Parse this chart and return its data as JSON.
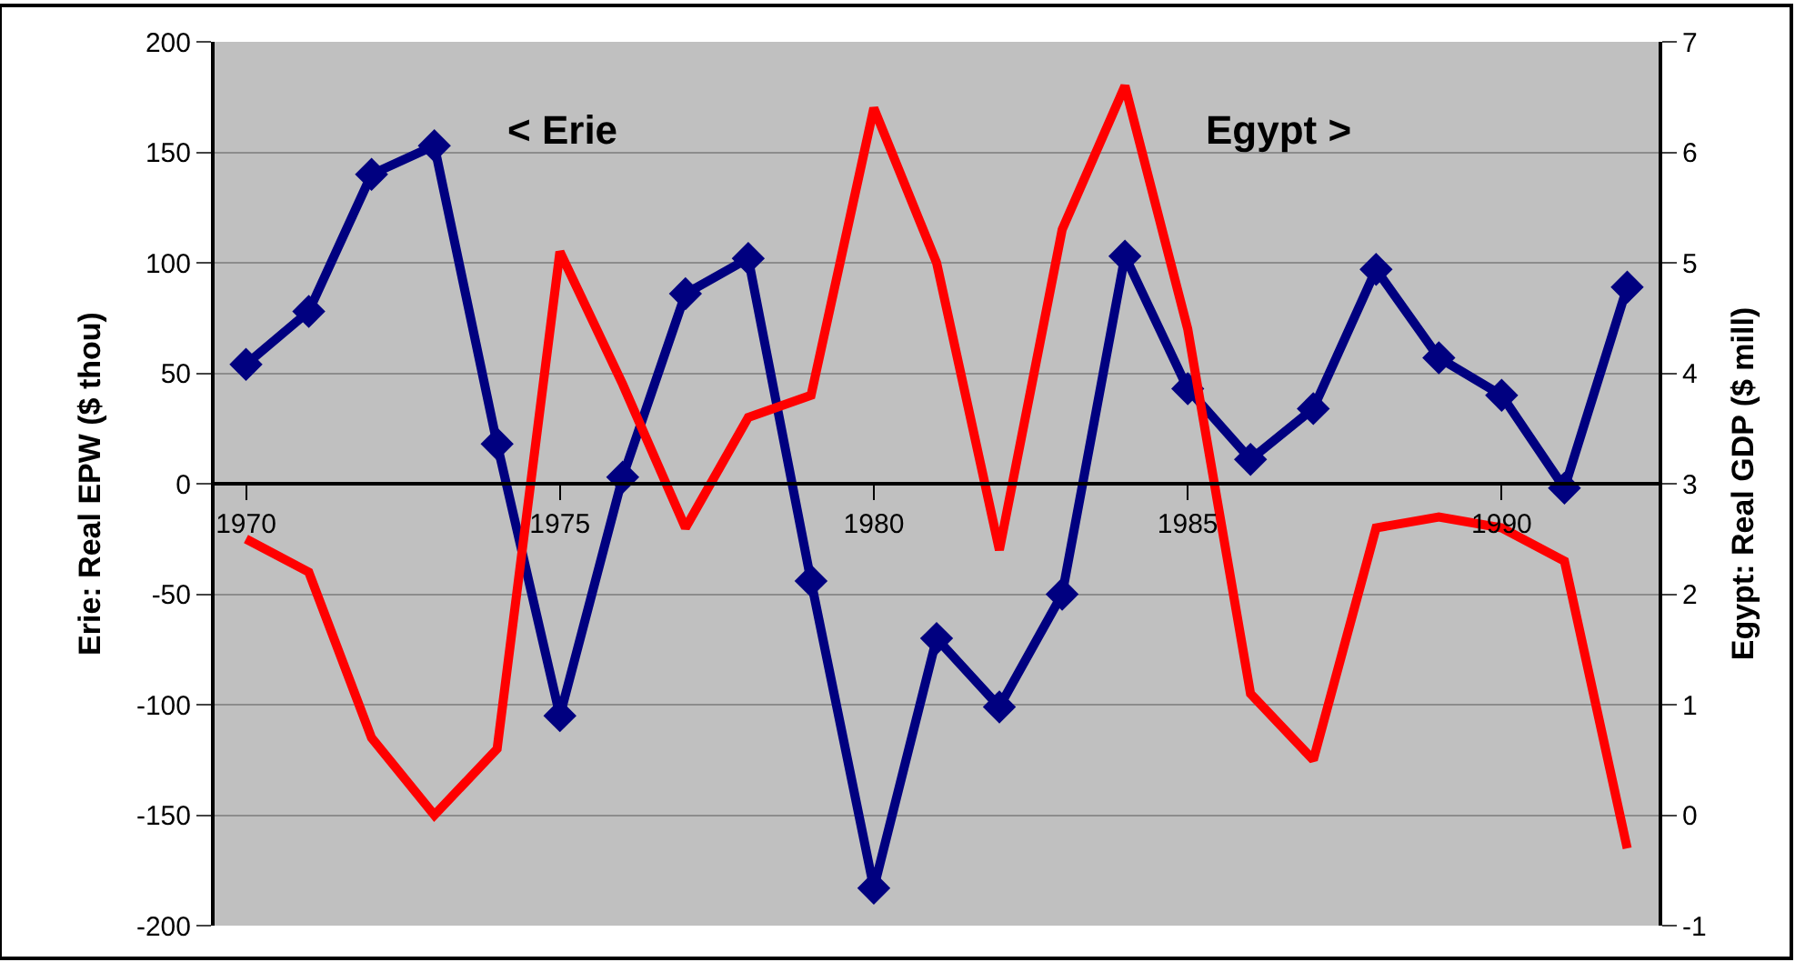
{
  "chart_data": {
    "type": "line",
    "categories": [
      "1970",
      null,
      null,
      null,
      null,
      "1975",
      null,
      null,
      null,
      null,
      "1980",
      null,
      null,
      null,
      null,
      "1985",
      null,
      null,
      null,
      null,
      "1990",
      null,
      null
    ],
    "ylabel": "Erie: Real EPW ($ thou)",
    "y2label": "Egypt: Real GDP ($ mill)",
    "ylim": [
      -200,
      200
    ],
    "yticks": [
      -200,
      -150,
      -100,
      -50,
      0,
      50,
      100,
      150,
      200
    ],
    "y2lim": [
      -1,
      7
    ],
    "y2ticks": [
      -1,
      0,
      1,
      2,
      3,
      4,
      5,
      6,
      7
    ],
    "series": [
      {
        "color": "#000080",
        "marker": "diamond",
        "values": [
          54,
          78,
          140,
          153,
          18,
          -105,
          3,
          86,
          102,
          -44,
          -183,
          -70,
          -101,
          -50,
          103,
          43,
          11,
          34,
          97,
          57,
          40,
          -2,
          89
        ]
      },
      {
        "color": "#ff0000",
        "axis": "y2",
        "marker": "none",
        "values": [
          2.5,
          2.2,
          0.7,
          0.0,
          0.6,
          5.1,
          3.9,
          2.6,
          3.6,
          3.8,
          6.4,
          5.0,
          2.4,
          5.3,
          6.6,
          4.4,
          1.1,
          0.5,
          2.6,
          2.7,
          2.6,
          2.3,
          -0.3
        ]
      }
    ],
    "annotations": [
      "< Erie",
      "Egypt >"
    ],
    "grid": "y"
  }
}
